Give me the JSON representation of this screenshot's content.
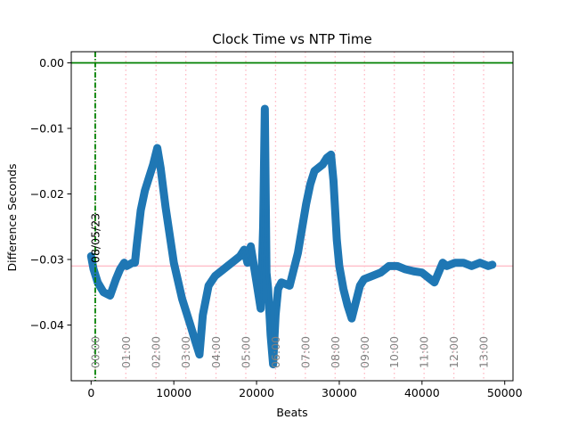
{
  "chart_data": {
    "type": "line",
    "title": "Clock Time vs NTP Time",
    "xlabel": "Beats",
    "ylabel": "Difference Seconds",
    "xlim": [
      -2400,
      51000
    ],
    "ylim": [
      -0.0485,
      0.0017
    ],
    "xticks": [
      0,
      10000,
      20000,
      30000,
      40000,
      50000
    ],
    "xtick_labels": [
      "0",
      "10000",
      "20000",
      "30000",
      "40000",
      "50000"
    ],
    "yticks": [
      0.0,
      -0.01,
      -0.02,
      -0.03,
      -0.04
    ],
    "ytick_labels": [
      "0.00",
      "−0.01",
      "−0.02",
      "−0.03",
      "−0.04"
    ],
    "grid": false,
    "reference_lines": {
      "zero_line": {
        "y": 0.0,
        "color": "#008000"
      },
      "mean_line": {
        "y": -0.031,
        "color": "#ffc0cb"
      },
      "date_marker": {
        "x": 500,
        "label": "08/05/23",
        "color": "#008000"
      }
    },
    "hour_markers": [
      {
        "x": 500,
        "label": "00:00"
      },
      {
        "x": 4200,
        "label": "01:00"
      },
      {
        "x": 7850,
        "label": "02:00"
      },
      {
        "x": 11450,
        "label": "03:00"
      },
      {
        "x": 15100,
        "label": "04:00"
      },
      {
        "x": 18700,
        "label": "05:00"
      },
      {
        "x": 22300,
        "label": "06:00"
      },
      {
        "x": 25900,
        "label": "07:00"
      },
      {
        "x": 29500,
        "label": "08:00"
      },
      {
        "x": 33050,
        "label": "09:00"
      },
      {
        "x": 36650,
        "label": "10:00"
      },
      {
        "x": 40250,
        "label": "11:00"
      },
      {
        "x": 43850,
        "label": "12:00"
      },
      {
        "x": 47450,
        "label": "13:00"
      }
    ],
    "series": [
      {
        "color": "#1f77b4",
        "x": [
          0,
          300,
          800,
          1500,
          2300,
          3000,
          3500,
          4000,
          4300,
          5000,
          5300,
          5500,
          6000,
          6500,
          7000,
          7500,
          7800,
          8000,
          8400,
          9000,
          10000,
          11000,
          12000,
          12600,
          13100,
          13500,
          14200,
          15000,
          16000,
          17000,
          18000,
          18500,
          18900,
          19300,
          20000,
          20500,
          20800,
          21000,
          21200,
          21400,
          21700,
          22000,
          22300,
          22600,
          23000,
          24000,
          25000,
          26000,
          26500,
          27000,
          28000,
          28500,
          29000,
          29300,
          29700,
          30000,
          30500,
          31000,
          31500,
          32000,
          32500,
          33000,
          34000,
          35000,
          36000,
          37000,
          38000,
          39000,
          40000,
          41000,
          41500,
          42000,
          42500,
          43000,
          44000,
          45000,
          46000,
          47000,
          48000,
          48500
        ],
        "y": [
          -0.0295,
          -0.0315,
          -0.0335,
          -0.035,
          -0.0355,
          -0.033,
          -0.0315,
          -0.0305,
          -0.031,
          -0.0305,
          -0.0305,
          -0.028,
          -0.0225,
          -0.0195,
          -0.0175,
          -0.0155,
          -0.014,
          -0.013,
          -0.016,
          -0.022,
          -0.0305,
          -0.036,
          -0.04,
          -0.0425,
          -0.0445,
          -0.0385,
          -0.034,
          -0.0325,
          -0.0315,
          -0.0305,
          -0.0295,
          -0.0285,
          -0.0305,
          -0.028,
          -0.0335,
          -0.0375,
          -0.025,
          -0.007,
          -0.032,
          -0.0345,
          -0.0415,
          -0.046,
          -0.0385,
          -0.0345,
          -0.0335,
          -0.034,
          -0.029,
          -0.0215,
          -0.0185,
          -0.0165,
          -0.0155,
          -0.0145,
          -0.014,
          -0.018,
          -0.027,
          -0.031,
          -0.0345,
          -0.037,
          -0.039,
          -0.0365,
          -0.034,
          -0.033,
          -0.0325,
          -0.032,
          -0.031,
          -0.031,
          -0.0315,
          -0.0318,
          -0.032,
          -0.033,
          -0.0335,
          -0.032,
          -0.0305,
          -0.031,
          -0.0305,
          -0.0305,
          -0.031,
          -0.0305,
          -0.031,
          -0.0308
        ]
      }
    ]
  }
}
